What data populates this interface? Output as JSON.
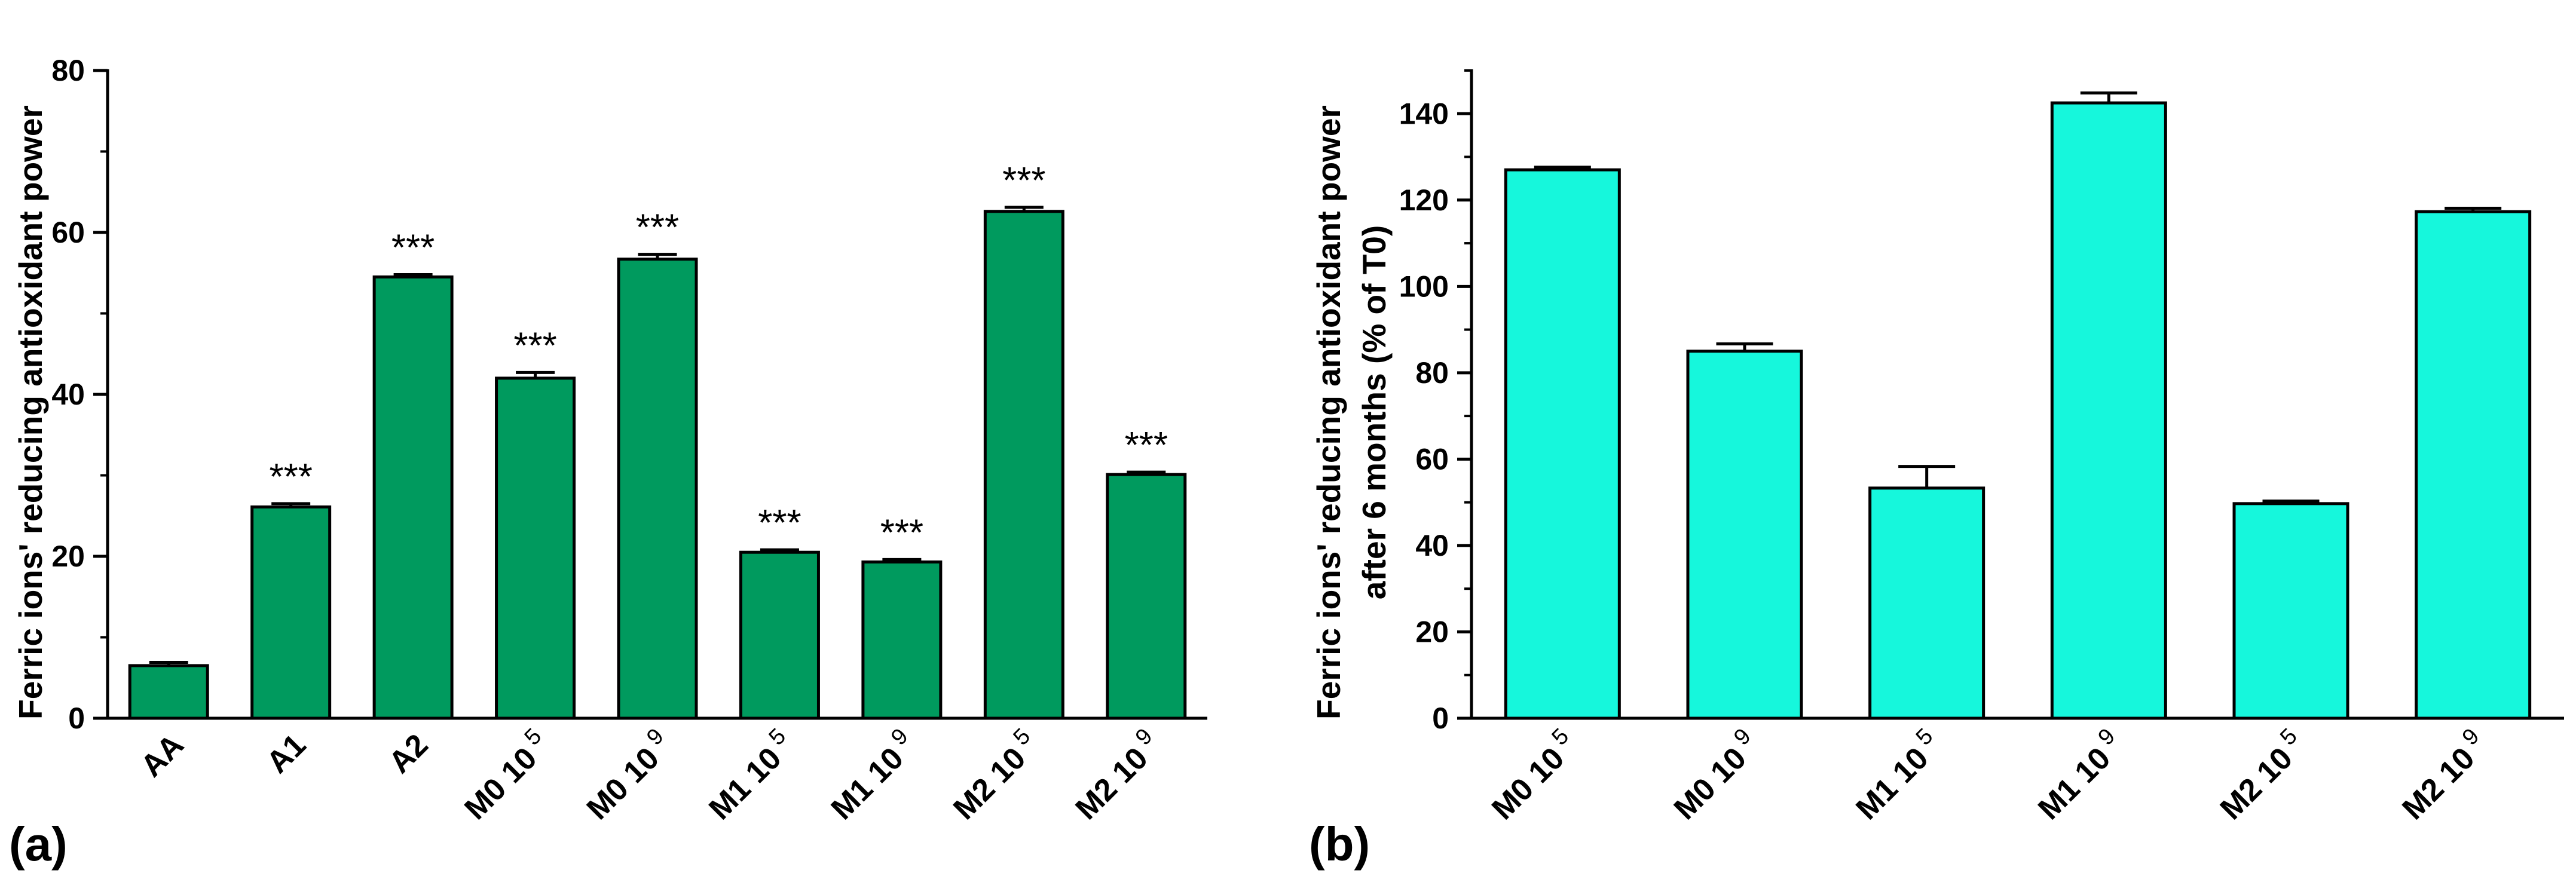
{
  "chart_data": [
    {
      "type": "bar",
      "panel_label": "(a)",
      "ylabel": "Ferric ions' reducing antioxidant power",
      "xlabel": "",
      "ylim": [
        0,
        80
      ],
      "yticks": [
        0,
        20,
        40,
        60,
        80
      ],
      "ytick_labels": [
        "0",
        "20",
        "40",
        "60",
        "80"
      ],
      "categories": [
        "AA",
        "A1",
        "A2",
        "M0 10",
        "M0 10",
        "M1 10",
        "M1 10",
        "M2 10",
        "M2 10"
      ],
      "category_superscripts": [
        "",
        "",
        "",
        "5",
        "9",
        "5",
        "9",
        "5",
        "9"
      ],
      "values": [
        6.5,
        26.1,
        54.5,
        42.0,
        56.7,
        20.5,
        19.3,
        62.6,
        30.1
      ],
      "errors": [
        0.4,
        0.4,
        0.3,
        0.7,
        0.6,
        0.3,
        0.3,
        0.5,
        0.3
      ],
      "significance": [
        "",
        "***",
        "***",
        "***",
        "***",
        "***",
        "***",
        "***",
        "***"
      ],
      "bar_color": "#009A5E",
      "grid": false
    },
    {
      "type": "bar",
      "panel_label": "(b)",
      "ylabel": "Ferric ions' reducing antioxidant power",
      "ylabel_line2": "after 6 months (% of T0)",
      "xlabel": "",
      "ylim": [
        0,
        150
      ],
      "yticks": [
        0,
        20,
        40,
        60,
        80,
        100,
        120,
        140
      ],
      "ytick_labels": [
        "0",
        "20",
        "40",
        "60",
        "80",
        "100",
        "120",
        "140"
      ],
      "categories": [
        "M0 10",
        "M0 10",
        "M1 10",
        "M1 10",
        "M2 10",
        "M2 10"
      ],
      "category_superscripts": [
        "5",
        "9",
        "5",
        "9",
        "5",
        "9"
      ],
      "values": [
        127.0,
        85.0,
        53.3,
        142.5,
        49.7,
        117.3
      ],
      "errors": [
        0.6,
        1.7,
        5.0,
        2.3,
        0.6,
        0.8
      ],
      "bar_color": "#16F7DC",
      "grid": false
    }
  ]
}
